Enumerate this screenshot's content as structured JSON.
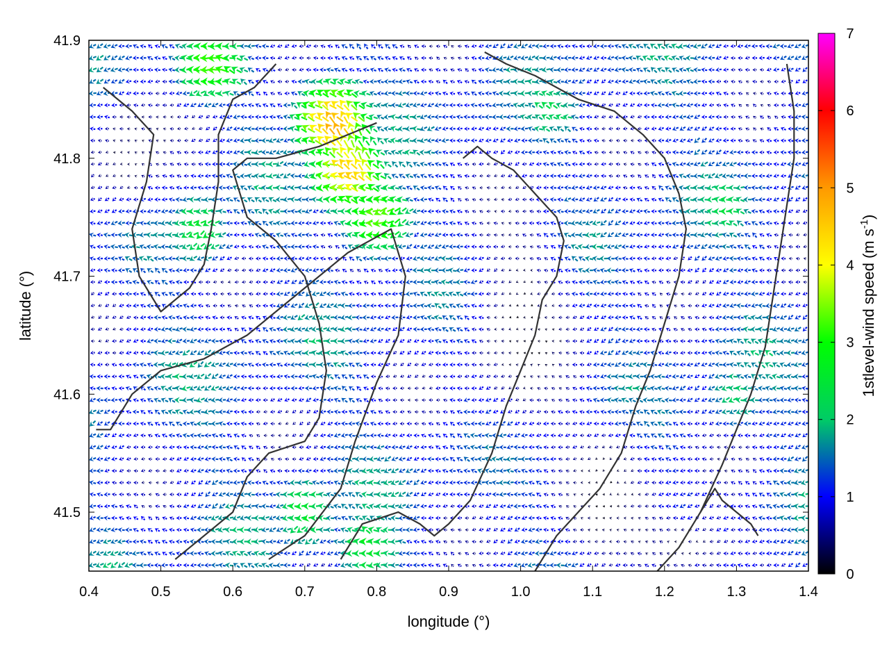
{
  "chart_data": {
    "type": "vector-field",
    "xlabel": "longitude (°)",
    "ylabel": "latitude (°)",
    "colorbar_label": "1stlevel-wind speed (m s",
    "colorbar_label_sup": "-1",
    "colorbar_label_end": ")",
    "xlim": [
      0.4,
      1.4
    ],
    "ylim": [
      41.45,
      41.9
    ],
    "xticks": [
      0.4,
      0.5,
      0.6,
      0.7,
      0.8,
      0.9,
      1.0,
      1.1,
      1.2,
      1.3,
      1.4
    ],
    "xtick_labels": [
      "0.4",
      "0.5",
      "0.6",
      "0.7",
      "0.8",
      "0.9",
      "1.0",
      "1.1",
      "1.2",
      "1.3",
      "1.4"
    ],
    "yticks": [
      41.5,
      41.6,
      41.7,
      41.8,
      41.9
    ],
    "ytick_labels": [
      "41.5",
      "41.6",
      "41.7",
      "41.8",
      "41.9"
    ],
    "colorbar_range": [
      0,
      7
    ],
    "colorbar_ticks": [
      0,
      1,
      2,
      3,
      4,
      5,
      6,
      7
    ],
    "colorbar_tick_labels": [
      "0",
      "1",
      "2",
      "3",
      "4",
      "5",
      "6",
      "7"
    ],
    "colormap": [
      "#000000",
      "#0000ff",
      "#00cc66",
      "#00ff00",
      "#ffff00",
      "#ff9900",
      "#ff0000",
      "#ff00ff"
    ],
    "contour_color": "#333333",
    "grid_spacing": [
      0.01,
      0.01
    ],
    "wind_field": {
      "dominant_direction": "westward",
      "jets": [
        {
          "lon": 0.76,
          "lat": 41.79,
          "speed": 4.5
        },
        {
          "lon": 0.74,
          "lat": 41.83,
          "speed": 4.8
        },
        {
          "lon": 0.8,
          "lat": 41.75,
          "speed": 3.4
        },
        {
          "lon": 0.57,
          "lat": 41.88,
          "speed": 3.3
        },
        {
          "lon": 0.79,
          "lat": 41.47,
          "speed": 2.6
        },
        {
          "lon": 0.7,
          "lat": 41.5,
          "speed": 2.5
        },
        {
          "lon": 0.55,
          "lat": 41.74,
          "speed": 2.5
        },
        {
          "lon": 1.28,
          "lat": 41.76,
          "speed": 2.3
        },
        {
          "lon": 1.04,
          "lat": 41.84,
          "speed": 2.2
        },
        {
          "lon": 1.3,
          "lat": 41.6,
          "speed": 2.0
        }
      ],
      "calm_zones": [
        {
          "lon": 1.0,
          "lat": 41.66,
          "rx": 0.07,
          "ry": 0.09
        },
        {
          "lon": 1.12,
          "lat": 41.52,
          "rx": 0.06,
          "ry": 0.05
        },
        {
          "lon": 1.22,
          "lat": 41.47,
          "rx": 0.08,
          "ry": 0.03
        },
        {
          "lon": 0.45,
          "lat": 41.8,
          "rx": 0.05,
          "ry": 0.05
        }
      ]
    },
    "contours": [
      [
        [
          0.41,
          41.57
        ],
        [
          0.43,
          41.57
        ],
        [
          0.46,
          41.6
        ],
        [
          0.5,
          41.62
        ],
        [
          0.56,
          41.63
        ],
        [
          0.62,
          41.65
        ],
        [
          0.7,
          41.69
        ],
        [
          0.76,
          41.72
        ],
        [
          0.82,
          41.74
        ],
        [
          0.84,
          41.7
        ],
        [
          0.83,
          41.65
        ],
        [
          0.8,
          41.61
        ],
        [
          0.77,
          41.56
        ],
        [
          0.75,
          41.52
        ],
        [
          0.7,
          41.48
        ],
        [
          0.65,
          41.46
        ]
      ],
      [
        [
          0.52,
          41.46
        ],
        [
          0.56,
          41.48
        ],
        [
          0.6,
          41.5
        ],
        [
          0.62,
          41.53
        ],
        [
          0.65,
          41.55
        ],
        [
          0.7,
          41.56
        ],
        [
          0.72,
          41.58
        ],
        [
          0.73,
          41.62
        ],
        [
          0.72,
          41.66
        ],
        [
          0.7,
          41.7
        ],
        [
          0.66,
          41.73
        ],
        [
          0.62,
          41.75
        ],
        [
          0.6,
          41.79
        ],
        [
          0.62,
          41.8
        ],
        [
          0.66,
          41.8
        ],
        [
          0.72,
          41.81
        ],
        [
          0.76,
          41.82
        ],
        [
          0.8,
          41.83
        ]
      ],
      [
        [
          0.75,
          41.46
        ],
        [
          0.78,
          41.49
        ],
        [
          0.83,
          41.5
        ],
        [
          0.86,
          41.49
        ],
        [
          0.88,
          41.48
        ],
        [
          0.9,
          41.49
        ],
        [
          0.93,
          41.51
        ],
        [
          0.96,
          41.55
        ],
        [
          0.98,
          41.59
        ],
        [
          1.0,
          41.62
        ],
        [
          1.02,
          41.65
        ],
        [
          1.03,
          41.68
        ],
        [
          1.05,
          41.7
        ],
        [
          1.06,
          41.73
        ],
        [
          1.05,
          41.75
        ],
        [
          1.02,
          41.77
        ],
        [
          0.99,
          41.79
        ],
        [
          0.96,
          41.8
        ],
        [
          0.94,
          41.81
        ],
        [
          0.92,
          41.8
        ]
      ],
      [
        [
          1.02,
          41.45
        ],
        [
          1.05,
          41.48
        ],
        [
          1.08,
          41.5
        ],
        [
          1.11,
          41.52
        ],
        [
          1.14,
          41.55
        ],
        [
          1.16,
          41.59
        ],
        [
          1.18,
          41.62
        ],
        [
          1.2,
          41.66
        ],
        [
          1.22,
          41.7
        ],
        [
          1.23,
          41.74
        ],
        [
          1.22,
          41.77
        ],
        [
          1.2,
          41.8
        ],
        [
          1.17,
          41.82
        ],
        [
          1.13,
          41.84
        ],
        [
          1.08,
          41.85
        ],
        [
          1.02,
          41.87
        ],
        [
          0.98,
          41.88
        ],
        [
          0.95,
          41.89
        ]
      ],
      [
        [
          0.42,
          41.86
        ],
        [
          0.46,
          41.84
        ],
        [
          0.49,
          41.82
        ],
        [
          0.48,
          41.78
        ],
        [
          0.46,
          41.74
        ],
        [
          0.47,
          41.7
        ],
        [
          0.5,
          41.67
        ],
        [
          0.54,
          41.69
        ],
        [
          0.56,
          41.71
        ],
        [
          0.57,
          41.74
        ],
        [
          0.58,
          41.78
        ],
        [
          0.58,
          41.82
        ],
        [
          0.6,
          41.85
        ],
        [
          0.63,
          41.86
        ],
        [
          0.66,
          41.88
        ]
      ],
      [
        [
          1.19,
          41.45
        ],
        [
          1.22,
          41.47
        ],
        [
          1.25,
          41.5
        ],
        [
          1.28,
          41.54
        ],
        [
          1.3,
          41.57
        ],
        [
          1.32,
          41.6
        ],
        [
          1.34,
          41.64
        ],
        [
          1.35,
          41.68
        ],
        [
          1.36,
          41.72
        ],
        [
          1.37,
          41.76
        ],
        [
          1.38,
          41.8
        ],
        [
          1.38,
          41.84
        ],
        [
          1.37,
          41.88
        ]
      ],
      [
        [
          1.25,
          41.5
        ],
        [
          1.27,
          41.52
        ],
        [
          1.28,
          41.51
        ],
        [
          1.3,
          41.5
        ],
        [
          1.32,
          41.49
        ],
        [
          1.33,
          41.48
        ]
      ]
    ]
  }
}
